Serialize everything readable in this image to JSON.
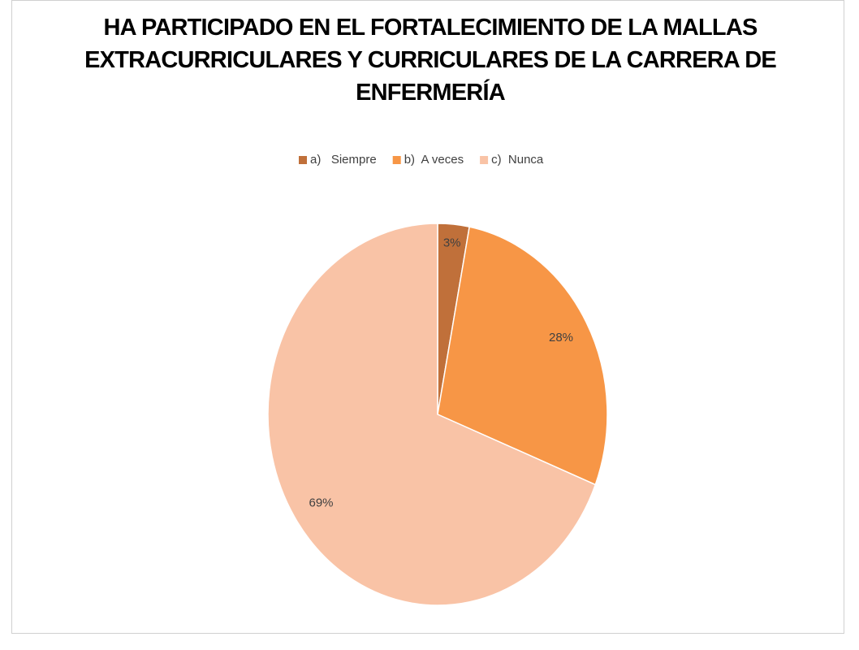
{
  "chart_data": {
    "type": "pie",
    "title": "HA PARTICIPADO EN EL FORTALECIMIENTO DE LA  MALLAS EXTRACURRICULARES Y CURRICULARES DE LA CARRERA DE ENFERMERÍA",
    "categories": [
      "a)   Siempre",
      "b)  A veces",
      "c)  Nunca"
    ],
    "values": [
      3,
      28,
      69
    ],
    "value_labels": [
      "3%",
      "28%",
      "69%"
    ],
    "colors": [
      "#c0703a",
      "#f79646",
      "#f9c3a6"
    ],
    "legend": "top"
  }
}
